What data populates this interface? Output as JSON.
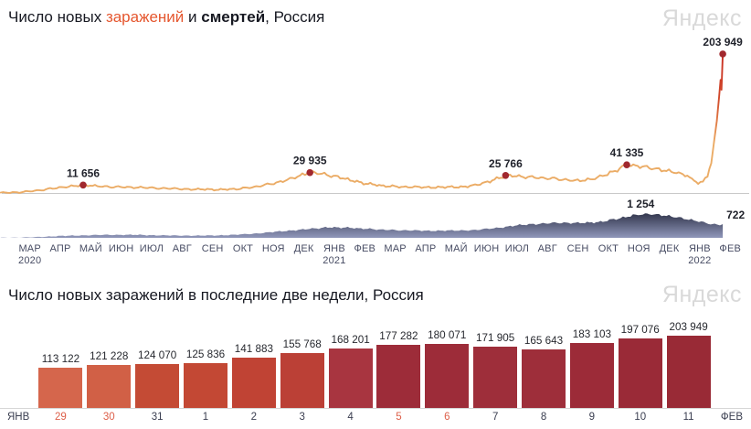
{
  "brand": {
    "logo": "Яндекс"
  },
  "header": {
    "t1": "Число новых ",
    "highlight": "заражений",
    "t2": " и ",
    "bold": "смертей",
    "t3": ", Россия"
  },
  "section2": {
    "title": "Число новых заражений в последние две недели, Россия"
  },
  "chart_data": [
    {
      "type": "line",
      "title": "Число новых заражений и смертей, Россия",
      "x_unit": "months from Mar 2020 to Feb 2022",
      "x_tick_labels": [
        "МАР",
        "АПР",
        "МАЙ",
        "ИЮН",
        "ИЮЛ",
        "АВГ",
        "СЕН",
        "ОКТ",
        "НОЯ",
        "ДЕК",
        "ЯНВ",
        "ФЕВ",
        "МАР",
        "АПР",
        "МАЙ",
        "ИЮН",
        "ИЮЛ",
        "АВГ",
        "СЕН",
        "ОКТ",
        "НОЯ",
        "ДЕК",
        "ЯНВ",
        "ФЕВ"
      ],
      "year_marks": {
        "0": "2020",
        "10": "2021",
        "22": "2022"
      },
      "series": [
        {
          "name": "заражений",
          "kind": "line",
          "color": "#ebac66",
          "peak_color": "#c92e22",
          "dot_color": "#a1282e",
          "ymax": 203949,
          "points": [
            [
              -0.15,
              300
            ],
            [
              0.3,
              700
            ],
            [
              0.8,
              2500
            ],
            [
              1.3,
              5200
            ],
            [
              1.8,
              8600
            ],
            [
              2.2,
              10600
            ],
            [
              2.5,
              11656
            ],
            [
              2.8,
              10400
            ],
            [
              3.2,
              9300
            ],
            [
              3.7,
              8800
            ],
            [
              4.2,
              8200
            ],
            [
              4.8,
              7300
            ],
            [
              5.3,
              6500
            ],
            [
              5.9,
              5700
            ],
            [
              6.5,
              5100
            ],
            [
              7.0,
              5000
            ],
            [
              7.5,
              6100
            ],
            [
              8.0,
              8800
            ],
            [
              8.5,
              13000
            ],
            [
              9.0,
              18000
            ],
            [
              9.4,
              23500
            ],
            [
              9.8,
              29935
            ],
            [
              10.2,
              27800
            ],
            [
              10.7,
              23800
            ],
            [
              11.1,
              18500
            ],
            [
              11.6,
              14000
            ],
            [
              12.1,
              10800
            ],
            [
              12.6,
              9300
            ],
            [
              13.1,
              8700
            ],
            [
              13.7,
              8400
            ],
            [
              14.3,
              8600
            ],
            [
              14.8,
              9200
            ],
            [
              15.2,
              12200
            ],
            [
              15.6,
              17000
            ],
            [
              16.1,
              25766
            ],
            [
              16.6,
              24200
            ],
            [
              17.1,
              22600
            ],
            [
              17.6,
              21200
            ],
            [
              18.1,
              19200
            ],
            [
              18.5,
              18200
            ],
            [
              18.9,
              20500
            ],
            [
              19.3,
              26500
            ],
            [
              19.7,
              33500
            ],
            [
              20.0,
              41335
            ],
            [
              20.35,
              39800
            ],
            [
              20.8,
              35800
            ],
            [
              21.2,
              32800
            ],
            [
              21.6,
              29800
            ],
            [
              21.95,
              26000
            ],
            [
              22.1,
              19000
            ],
            [
              22.3,
              15500
            ],
            [
              22.45,
              16500
            ],
            [
              22.6,
              26000
            ],
            [
              22.72,
              45000
            ],
            [
              22.82,
              75000
            ],
            [
              22.9,
              105000
            ],
            [
              22.97,
              140000
            ],
            [
              23.02,
              170000
            ],
            [
              23.05,
              153000
            ],
            [
              23.09,
              203949
            ]
          ],
          "annotations": [
            {
              "x": 2.5,
              "v": 11656,
              "label": "11 656"
            },
            {
              "x": 9.8,
              "v": 29935,
              "label": "29 935"
            },
            {
              "x": 16.1,
              "v": 25766,
              "label": "25 766"
            },
            {
              "x": 20.0,
              "v": 41335,
              "label": "41 335"
            },
            {
              "x": 23.09,
              "v": 203949,
              "label": "203 949"
            }
          ]
        },
        {
          "name": "смертей",
          "kind": "area",
          "top_color": "#2e3248",
          "bottom_color": "#9097ba",
          "ymax": 1254,
          "points": [
            [
              -0.15,
              2
            ],
            [
              0.8,
              25
            ],
            [
              1.4,
              70
            ],
            [
              2,
              110
            ],
            [
              2.6,
              135
            ],
            [
              3.2,
              155
            ],
            [
              3.8,
              160
            ],
            [
              4.4,
              150
            ],
            [
              5,
              130
            ],
            [
              5.6,
              118
            ],
            [
              6.2,
              115
            ],
            [
              6.8,
              125
            ],
            [
              7.4,
              160
            ],
            [
              8,
              220
            ],
            [
              8.6,
              300
            ],
            [
              9.2,
              390
            ],
            [
              9.8,
              470
            ],
            [
              10.3,
              545
            ],
            [
              10.8,
              550
            ],
            [
              11.3,
              510
            ],
            [
              11.8,
              460
            ],
            [
              12.3,
              420
            ],
            [
              12.8,
              395
            ],
            [
              13.4,
              380
            ],
            [
              14,
              375
            ],
            [
              14.6,
              385
            ],
            [
              15.2,
              420
            ],
            [
              15.8,
              520
            ],
            [
              16.4,
              640
            ],
            [
              17,
              730
            ],
            [
              17.6,
              780
            ],
            [
              18.2,
              795
            ],
            [
              18.8,
              790
            ],
            [
              19.3,
              880
            ],
            [
              19.8,
              1050
            ],
            [
              20.2,
              1200
            ],
            [
              20.45,
              1254
            ],
            [
              20.8,
              1235
            ],
            [
              21.2,
              1170
            ],
            [
              21.6,
              1080
            ],
            [
              22,
              960
            ],
            [
              22.4,
              840
            ],
            [
              22.7,
              740
            ],
            [
              22.9,
              690
            ],
            [
              23.0,
              700
            ],
            [
              23.09,
              722
            ]
          ],
          "annotations": [
            {
              "x": 20.45,
              "v": 1254,
              "label": "1 254",
              "pos": "top"
            },
            {
              "x": 23.09,
              "v": 722,
              "label": "722",
              "pos": "right"
            }
          ]
        }
      ]
    },
    {
      "type": "bar",
      "title": "Число новых заражений в последние две недели, Россия",
      "month_left": "ЯНВ",
      "month_right": "ФЕВ",
      "categories": [
        "29",
        "30",
        "31",
        "1",
        "2",
        "3",
        "4",
        "5",
        "6",
        "7",
        "8",
        "9",
        "10",
        "11"
      ],
      "weekend_indices": [
        0,
        1,
        7,
        8
      ],
      "values": [
        113122,
        121228,
        124070,
        125836,
        141883,
        155768,
        168201,
        177282,
        180071,
        171905,
        165643,
        183103,
        197076,
        203949
      ],
      "labels": [
        "113 122",
        "121 228",
        "124 070",
        "125 836",
        "141 883",
        "155 768",
        "168 201",
        "177 282",
        "180 071",
        "171 905",
        "165 643",
        "183 103",
        "197 076",
        "203 949"
      ],
      "colors": [
        "#d5664c",
        "#d16046",
        "#c44b35",
        "#c34834",
        "#c04334",
        "#bb4036",
        "#a83540",
        "#9d2c39",
        "#9d2c39",
        "#9e2e3a",
        "#9e2e3a",
        "#9c2b38",
        "#9a2a37",
        "#992a36"
      ],
      "ylim": [
        0,
        203949
      ]
    }
  ]
}
